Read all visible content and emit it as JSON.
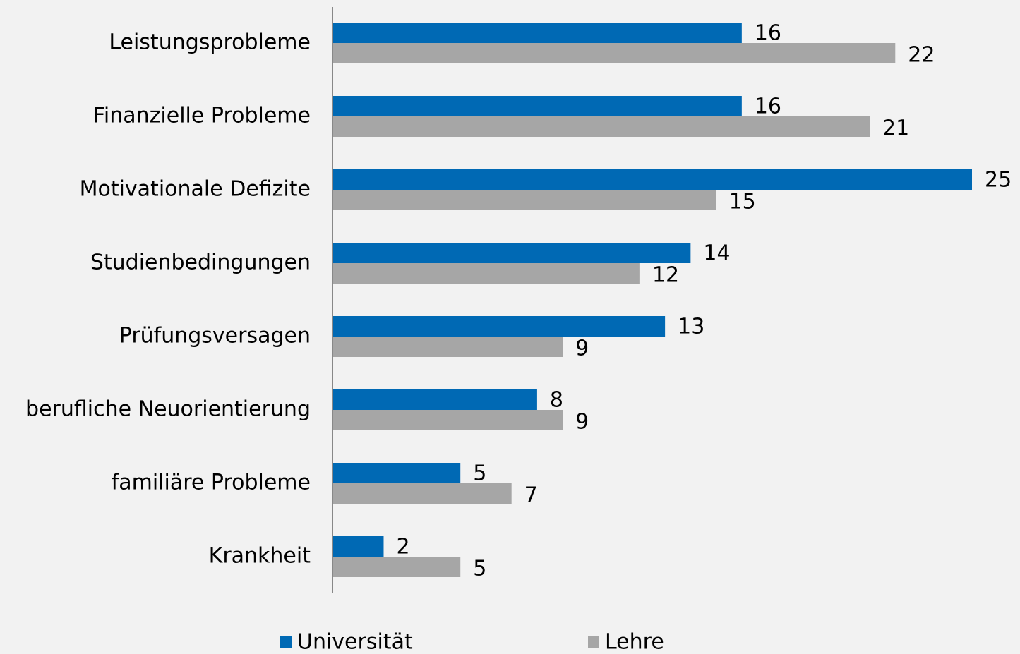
{
  "chart_data": {
    "type": "hbar",
    "categories": [
      "Leistungsprobleme",
      "Finanzielle Probleme",
      "Motivationale Defizite",
      "Studienbedingungen",
      "Prüfungsversagen",
      "berufliche Neuorientierung",
      "familiäre Probleme",
      "Krankheit"
    ],
    "series": [
      {
        "name": "Universität",
        "color": "#0069b4",
        "values": [
          16,
          16,
          25,
          14,
          13,
          8,
          5,
          2
        ]
      },
      {
        "name": "Lehre",
        "color": "#a6a6a6",
        "values": [
          22,
          21,
          15,
          12,
          9,
          9,
          7,
          5
        ]
      }
    ],
    "legend": "bottom"
  }
}
